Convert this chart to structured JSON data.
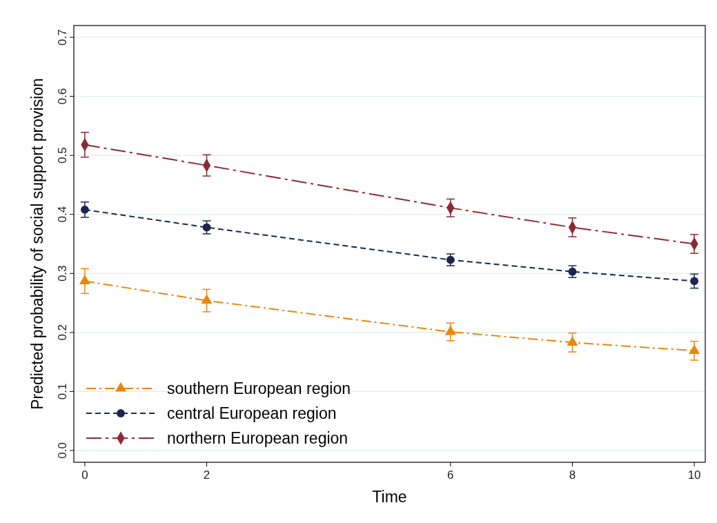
{
  "chart_data": {
    "type": "line",
    "xlabel": "Time",
    "ylabel": "Predicted probability of social support provision",
    "x": [
      0,
      2,
      6,
      8,
      10
    ],
    "series": [
      {
        "name": "southern European region",
        "color": "#e8870e",
        "marker": "triangle",
        "line_style": "dashed",
        "values": [
          0.287,
          0.254,
          0.201,
          0.183,
          0.169
        ],
        "errors": [
          0.021,
          0.019,
          0.015,
          0.016,
          0.016
        ]
      },
      {
        "name": "central European region",
        "color": "#1a2650",
        "marker": "circle",
        "line_style": "dashed",
        "values": [
          0.408,
          0.378,
          0.323,
          0.303,
          0.287
        ],
        "errors": [
          0.013,
          0.011,
          0.01,
          0.01,
          0.012
        ]
      },
      {
        "name": "northern European region",
        "color": "#8c2a35",
        "marker": "diamond",
        "line_style": "dashed",
        "values": [
          0.518,
          0.483,
          0.411,
          0.378,
          0.35
        ],
        "errors": [
          0.021,
          0.018,
          0.015,
          0.016,
          0.016
        ]
      }
    ],
    "xlim": [
      -0.18,
      10.18
    ],
    "xticks": [
      0,
      2,
      6,
      8,
      10
    ],
    "ylim": [
      -0.02,
      0.72
    ],
    "yticks": [
      {
        "value": 0,
        "label": "0.0"
      },
      0.1,
      0.2,
      0.3,
      0.4,
      0.5,
      0.6,
      0.7
    ],
    "grid": "y",
    "legend": "bottom left"
  }
}
